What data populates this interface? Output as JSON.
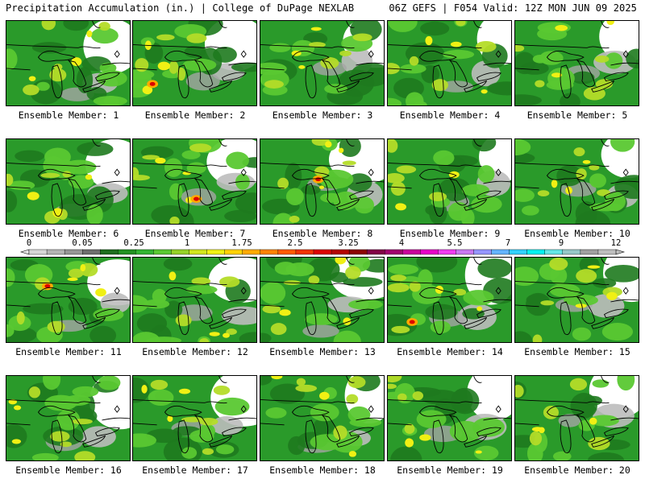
{
  "header": {
    "left": "Precipitation Accumulation (in.) | College of DuPage NEXLAB",
    "right": "06Z GEFS | F054 Valid: 12Z MON JUN 09 2025"
  },
  "panels": [
    {
      "label": "Ensemble Member: 1"
    },
    {
      "label": "Ensemble Member: 2"
    },
    {
      "label": "Ensemble Member: 3"
    },
    {
      "label": "Ensemble Member: 4"
    },
    {
      "label": "Ensemble Member: 5"
    },
    {
      "label": "Ensemble Member: 6"
    },
    {
      "label": "Ensemble Member: 7"
    },
    {
      "label": "Ensemble Member: 8"
    },
    {
      "label": "Ensemble Member: 9"
    },
    {
      "label": "Ensemble Member: 10"
    },
    {
      "label": "Ensemble Member: 11"
    },
    {
      "label": "Ensemble Member: 12"
    },
    {
      "label": "Ensemble Member: 13"
    },
    {
      "label": "Ensemble Member: 14"
    },
    {
      "label": "Ensemble Member: 15"
    },
    {
      "label": "Ensemble Member: 16"
    },
    {
      "label": "Ensemble Member: 17"
    },
    {
      "label": "Ensemble Member: 18"
    },
    {
      "label": "Ensemble Member: 19"
    },
    {
      "label": "Ensemble Member: 20"
    }
  ],
  "colorbar": {
    "labels": [
      "0",
      "0.05",
      "0.25",
      "1",
      "1.75",
      "2.5",
      "3.25",
      "4",
      "5.5",
      "7",
      "9",
      "12"
    ],
    "colors": [
      "#d6d6d6",
      "#b4b4b4",
      "#969696",
      "#6e6e6e",
      "#1e6e1e",
      "#229122",
      "#32b432",
      "#5ac832",
      "#96d228",
      "#d2e61e",
      "#f0f014",
      "#ffd200",
      "#ffaa00",
      "#ff8200",
      "#ff5a00",
      "#f03200",
      "#dc0000",
      "#b40000",
      "#8c0000",
      "#820046",
      "#a0006e",
      "#c8009b",
      "#e600c8",
      "#f03cf0",
      "#c878f0",
      "#9696ff",
      "#64b4ff",
      "#32d2ff",
      "#00f0f0",
      "#64e6e6",
      "#96c8c8",
      "#a0a0a0",
      "#bebebe"
    ]
  }
}
